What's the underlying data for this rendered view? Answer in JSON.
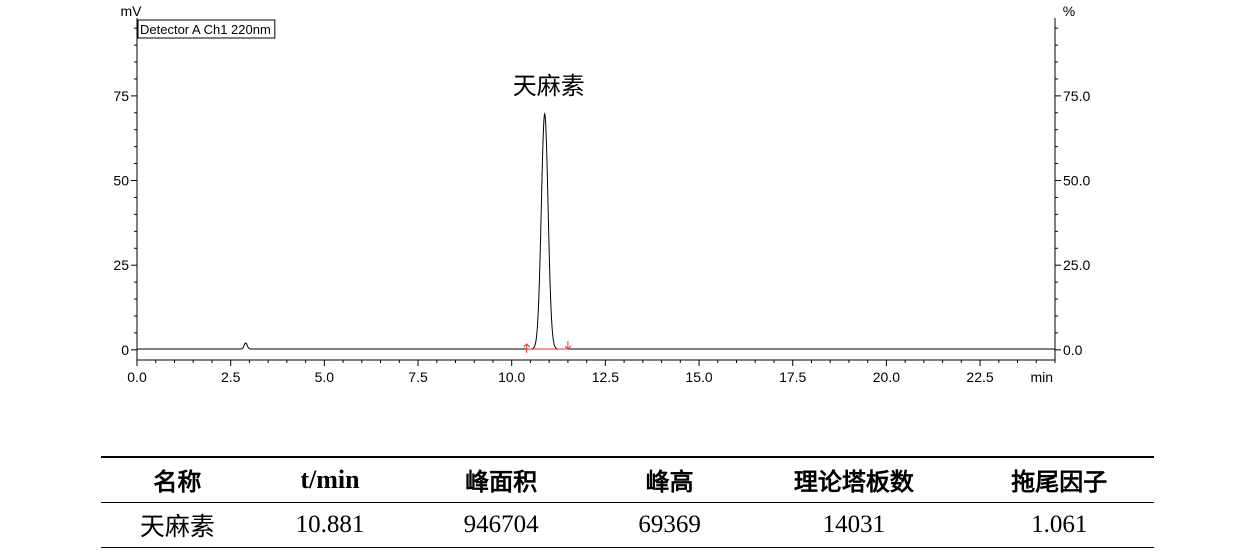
{
  "chart_data": {
    "type": "line",
    "legend_label": "Detector A Ch1 220nm",
    "left_unit": "mV",
    "right_unit": "%",
    "x_unit": "min",
    "xlim": [
      0,
      24.5
    ],
    "ylim": [
      -3,
      98
    ],
    "x_ticks": [
      "0.0",
      "2.5",
      "5.0",
      "7.5",
      "10.0",
      "12.5",
      "15.0",
      "17.5",
      "20.0",
      "22.5"
    ],
    "y_ticks_left": [
      "0",
      "25",
      "50",
      "75"
    ],
    "y_ticks_right": [
      "0.0",
      "25.0",
      "50.0",
      "75.0"
    ],
    "peaks": [
      {
        "name": "天麻素",
        "retention_time": 10.881,
        "height_mV": 69.4,
        "sigma_min": 0.09
      },
      {
        "name": "",
        "retention_time": 2.9,
        "height_mV": 1.8,
        "sigma_min": 0.04
      }
    ],
    "integration_start": 10.4,
    "integration_end": 11.5,
    "baseline_color": "#e53935",
    "trace_color": "#000000"
  },
  "table": {
    "headers": [
      "名称",
      "t/min",
      "峰面积",
      "峰高",
      "理论塔板数",
      "拖尾因子"
    ],
    "rows": [
      [
        "天麻素",
        "10.881",
        "946704",
        "69369",
        "14031",
        "1.061"
      ]
    ]
  }
}
